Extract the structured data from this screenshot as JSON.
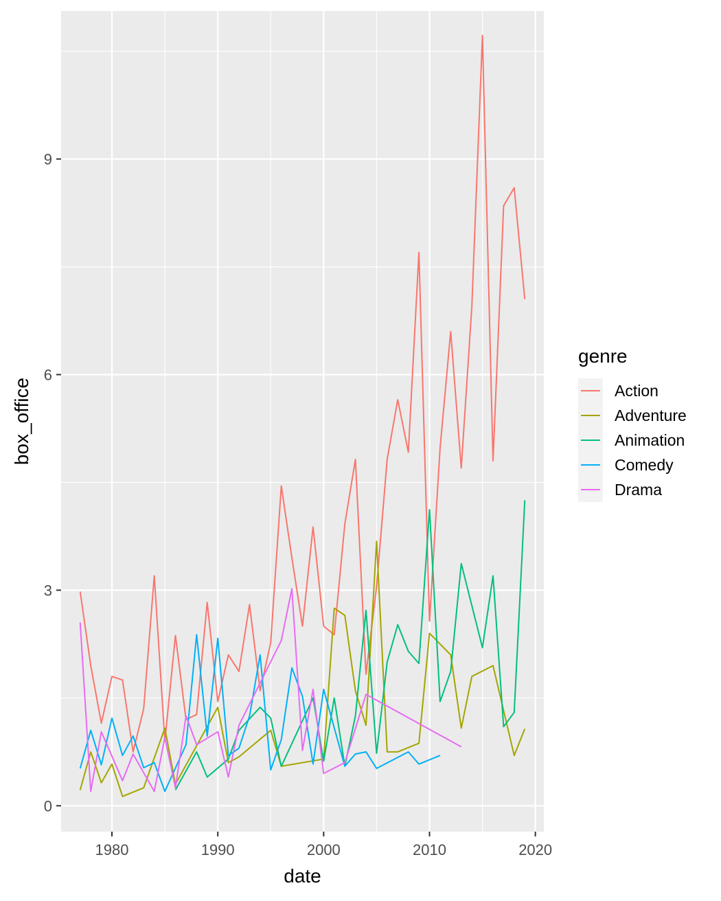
{
  "chart_data": {
    "type": "line",
    "xlabel": "date",
    "ylabel": "box_office",
    "xlim": [
      1975.2,
      2020.8
    ],
    "ylim": [
      -0.36,
      11.06
    ],
    "x_ticks": [
      1980,
      1990,
      2000,
      2010,
      2020
    ],
    "x_tick_labels": [
      "1980",
      "1990",
      "2000",
      "2010",
      "2020"
    ],
    "y_ticks": [
      0,
      3,
      6,
      9
    ],
    "y_tick_labels": [
      "0",
      "3",
      "6",
      "9"
    ],
    "grid": true,
    "legend": {
      "title": "genre",
      "position": "right"
    },
    "series": [
      {
        "name": "Action",
        "color": "#F8766D",
        "points": [
          [
            1977,
            2.98
          ],
          [
            1978,
            1.95
          ],
          [
            1979,
            1.15
          ],
          [
            1980,
            1.8
          ],
          [
            1981,
            1.75
          ],
          [
            1982,
            0.75
          ],
          [
            1983,
            1.35
          ],
          [
            1984,
            3.2
          ],
          [
            1985,
            0.9
          ],
          [
            1986,
            2.37
          ],
          [
            1987,
            1.2
          ],
          [
            1988,
            1.27
          ],
          [
            1989,
            2.83
          ],
          [
            1990,
            1.45
          ],
          [
            1991,
            2.1
          ],
          [
            1992,
            1.87
          ],
          [
            1993,
            2.8
          ],
          [
            1994,
            1.6
          ],
          [
            1995,
            2.27
          ],
          [
            1996,
            4.45
          ],
          [
            1997,
            3.45
          ],
          [
            1998,
            2.5
          ],
          [
            1999,
            3.88
          ],
          [
            2000,
            2.5
          ],
          [
            2001,
            2.38
          ],
          [
            2002,
            3.92
          ],
          [
            2003,
            4.82
          ],
          [
            2004,
            1.83
          ],
          [
            2005,
            3.05
          ],
          [
            2006,
            4.82
          ],
          [
            2007,
            5.65
          ],
          [
            2008,
            4.92
          ],
          [
            2009,
            7.7
          ],
          [
            2010,
            2.57
          ],
          [
            2011,
            4.98
          ],
          [
            2012,
            6.6
          ],
          [
            2013,
            4.7
          ],
          [
            2014,
            6.95
          ],
          [
            2015,
            10.72
          ],
          [
            2016,
            4.8
          ],
          [
            2017,
            8.35
          ],
          [
            2018,
            8.6
          ],
          [
            2019,
            7.05
          ]
        ]
      },
      {
        "name": "Adventure",
        "color": "#A3A500",
        "points": [
          [
            1977,
            0.22
          ],
          [
            1978,
            0.75
          ],
          [
            1979,
            0.32
          ],
          [
            1980,
            0.58
          ],
          [
            1981,
            0.13
          ],
          [
            1983,
            0.25
          ],
          [
            1985,
            1.08
          ],
          [
            1986,
            0.3
          ],
          [
            1990,
            1.37
          ],
          [
            1991,
            0.6
          ],
          [
            1992,
            0.68
          ],
          [
            1995,
            1.05
          ],
          [
            1996,
            0.55
          ],
          [
            2000,
            0.65
          ],
          [
            2001,
            2.75
          ],
          [
            2002,
            2.65
          ],
          [
            2003,
            1.6
          ],
          [
            2004,
            1.12
          ],
          [
            2005,
            3.68
          ],
          [
            2006,
            0.75
          ],
          [
            2007,
            0.75
          ],
          [
            2009,
            0.87
          ],
          [
            2010,
            2.4
          ],
          [
            2012,
            2.1
          ],
          [
            2013,
            1.08
          ],
          [
            2014,
            1.8
          ],
          [
            2016,
            1.95
          ],
          [
            2018,
            0.7
          ],
          [
            2019,
            1.07
          ]
        ]
      },
      {
        "name": "Animation",
        "color": "#00BF7D",
        "points": [
          [
            1986,
            0.22
          ],
          [
            1988,
            0.75
          ],
          [
            1989,
            0.4
          ],
          [
            1991,
            0.65
          ],
          [
            1992,
            1.05
          ],
          [
            1994,
            1.37
          ],
          [
            1995,
            1.22
          ],
          [
            1996,
            0.55
          ],
          [
            1999,
            1.5
          ],
          [
            2000,
            0.62
          ],
          [
            2001,
            1.5
          ],
          [
            2002,
            0.55
          ],
          [
            2003,
            1.25
          ],
          [
            2004,
            2.72
          ],
          [
            2005,
            0.73
          ],
          [
            2006,
            2.0
          ],
          [
            2007,
            2.52
          ],
          [
            2008,
            2.15
          ],
          [
            2009,
            1.98
          ],
          [
            2010,
            4.12
          ],
          [
            2011,
            1.45
          ],
          [
            2012,
            1.87
          ],
          [
            2013,
            3.37
          ],
          [
            2015,
            2.2
          ],
          [
            2016,
            3.2
          ],
          [
            2017,
            1.1
          ],
          [
            2018,
            1.3
          ],
          [
            2019,
            4.25
          ]
        ]
      },
      {
        "name": "Comedy",
        "color": "#00B0F6",
        "points": [
          [
            1977,
            0.52
          ],
          [
            1978,
            1.05
          ],
          [
            1979,
            0.57
          ],
          [
            1980,
            1.22
          ],
          [
            1981,
            0.7
          ],
          [
            1982,
            0.97
          ],
          [
            1983,
            0.53
          ],
          [
            1984,
            0.6
          ],
          [
            1985,
            0.2
          ],
          [
            1987,
            0.85
          ],
          [
            1988,
            2.38
          ],
          [
            1989,
            0.97
          ],
          [
            1990,
            2.33
          ],
          [
            1991,
            0.7
          ],
          [
            1992,
            0.8
          ],
          [
            1993,
            1.25
          ],
          [
            1994,
            2.1
          ],
          [
            1995,
            0.5
          ],
          [
            1996,
            0.92
          ],
          [
            1997,
            1.92
          ],
          [
            1998,
            1.52
          ],
          [
            1999,
            0.58
          ],
          [
            2000,
            1.62
          ],
          [
            2002,
            0.55
          ],
          [
            2003,
            0.72
          ],
          [
            2004,
            0.75
          ],
          [
            2005,
            0.52
          ],
          [
            2008,
            0.75
          ],
          [
            2009,
            0.58
          ],
          [
            2011,
            0.7
          ]
        ]
      },
      {
        "name": "Drama",
        "color": "#E76BF3",
        "points": [
          [
            1977,
            2.55
          ],
          [
            1978,
            0.2
          ],
          [
            1979,
            1.03
          ],
          [
            1981,
            0.35
          ],
          [
            1982,
            0.72
          ],
          [
            1984,
            0.2
          ],
          [
            1985,
            0.95
          ],
          [
            1986,
            0.25
          ],
          [
            1987,
            1.25
          ],
          [
            1988,
            0.85
          ],
          [
            1990,
            1.03
          ],
          [
            1991,
            0.4
          ],
          [
            1992,
            1.12
          ],
          [
            1996,
            2.3
          ],
          [
            1997,
            3.02
          ],
          [
            1998,
            0.77
          ],
          [
            1999,
            1.62
          ],
          [
            2000,
            0.45
          ],
          [
            2002,
            0.6
          ],
          [
            2004,
            1.55
          ],
          [
            2013,
            0.82
          ]
        ]
      }
    ]
  }
}
